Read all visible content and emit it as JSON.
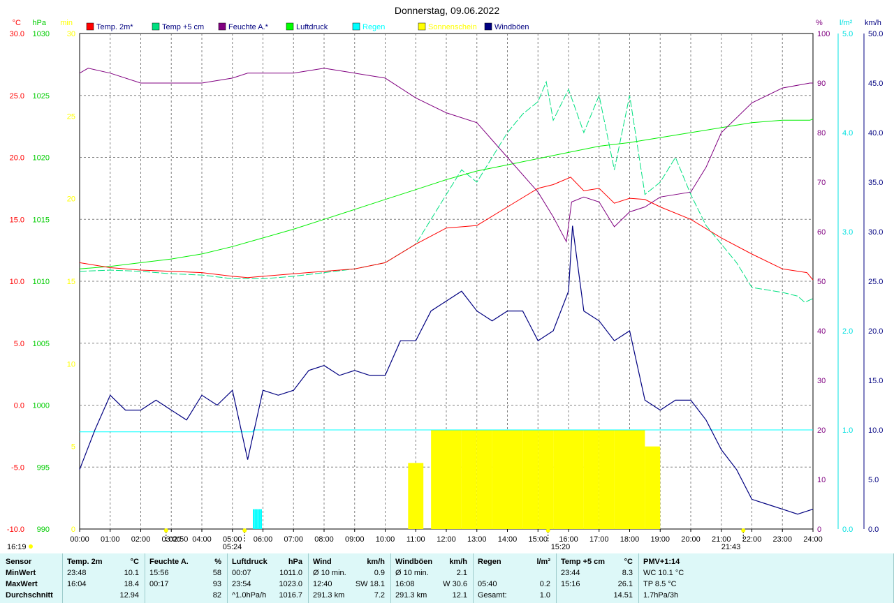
{
  "chart_data": {
    "type": "line",
    "title": "Donnerstag, 09.06.2022",
    "x_ticks": [
      "00:00",
      "01:00",
      "02:00",
      "03:00",
      "04:00",
      "05:00",
      "06:00",
      "07:00",
      "08:00",
      "09:00",
      "10:00",
      "11:00",
      "12:00",
      "13:00",
      "14:00",
      "15:00",
      "16:00",
      "17:00",
      "18:00",
      "19:00",
      "20:00",
      "21:00",
      "22:00",
      "23:00",
      "24:00"
    ],
    "grid": true,
    "legend_placement": "top",
    "axes": {
      "temp": {
        "unit": "°C",
        "color": "#ff0000",
        "ylim": [
          -10,
          30
        ],
        "ticks": [
          "30.0",
          "25.0",
          "20.0",
          "15.0",
          "10.0",
          "5.0",
          "0.0",
          "-5.0",
          "-10.0"
        ]
      },
      "pressure": {
        "unit": "hPa",
        "color": "#00cc00",
        "ylim": [
          990,
          1030
        ],
        "ticks": [
          "1030",
          "1025",
          "1020",
          "1015",
          "1010",
          "1005",
          "1000",
          "995",
          "990"
        ]
      },
      "sunshine": {
        "unit": "min",
        "color": "#ffff00",
        "ylim": [
          0,
          30
        ],
        "ticks": [
          "30",
          "25",
          "20",
          "15",
          "10",
          "5",
          "0"
        ]
      },
      "humidity": {
        "unit": "%",
        "color": "#800080",
        "ylim": [
          0,
          100
        ],
        "ticks": [
          "100",
          "90",
          "80",
          "70",
          "60",
          "50",
          "40",
          "30",
          "20",
          "10",
          "0"
        ]
      },
      "rain": {
        "unit": "l/m²",
        "color": "#00e0e0",
        "ylim": [
          0,
          5
        ],
        "ticks": [
          "5.0",
          "4.0",
          "3.0",
          "2.0",
          "1.0",
          "0.0"
        ]
      },
      "wind": {
        "unit": "km/h",
        "color": "#000080",
        "ylim": [
          0,
          50
        ],
        "ticks": [
          "50.0",
          "45.0",
          "40.0",
          "35.0",
          "30.0",
          "25.0",
          "20.0",
          "15.0",
          "10.0",
          "5.0",
          "0.0"
        ]
      }
    },
    "legend": [
      {
        "name": "Temp. 2m*",
        "color": "#ff0000"
      },
      {
        "name": "Temp +5 cm",
        "color": "#00e080"
      },
      {
        "name": "Feuchte A.*",
        "color": "#800080"
      },
      {
        "name": "Luftdruck",
        "color": "#00ff00"
      },
      {
        "name": "Regen",
        "color": "#00ffff"
      },
      {
        "name": "Sonnenschein",
        "color": "#ffff00"
      },
      {
        "name": "Windböen",
        "color": "#000080"
      }
    ],
    "series": [
      {
        "name": "Temp. 2m*",
        "axis": "temp",
        "x": [
          0,
          1,
          2,
          3,
          4,
          5,
          5.5,
          6,
          7,
          8,
          9,
          10,
          11,
          12,
          13,
          14,
          15,
          15.5,
          16.07,
          16.5,
          17,
          17.5,
          18,
          18.5,
          19,
          20,
          21,
          22,
          23,
          23.8,
          24
        ],
        "y": [
          11.5,
          11.1,
          10.9,
          10.8,
          10.7,
          10.4,
          10.3,
          10.4,
          10.6,
          10.8,
          11.0,
          11.5,
          13.0,
          14.3,
          14.5,
          16.0,
          17.5,
          17.8,
          18.4,
          17.3,
          17.5,
          16.3,
          16.7,
          16.6,
          16.0,
          15.0,
          13.5,
          12.2,
          11.0,
          10.7,
          10.1
        ]
      },
      {
        "name": "Temp +5 cm",
        "axis": "temp",
        "x": [
          0,
          1,
          2,
          3,
          4,
          5,
          6,
          7,
          8,
          9,
          10,
          11,
          11.5,
          12,
          12.5,
          13,
          13.5,
          14,
          14.5,
          15,
          15.27,
          15.5,
          16,
          16.5,
          17,
          17.5,
          18,
          18.5,
          19,
          19.5,
          20,
          20.5,
          21,
          21.5,
          22,
          22.5,
          23,
          23.5,
          23.73,
          24
        ],
        "y": [
          10.8,
          10.9,
          10.8,
          10.6,
          10.5,
          10.2,
          10.2,
          10.4,
          10.7,
          11.0,
          11.5,
          13.0,
          15.0,
          17.0,
          19.0,
          18.0,
          20.0,
          22.0,
          23.5,
          24.5,
          26.1,
          23.0,
          25.5,
          22.0,
          25.0,
          19.0,
          25.0,
          17.0,
          18.0,
          20.0,
          17.0,
          14.5,
          13.0,
          11.5,
          9.5,
          9.3,
          9.1,
          8.8,
          8.3,
          8.6
        ]
      },
      {
        "name": "Feuchte A.*",
        "axis": "humidity",
        "x": [
          0,
          0.28,
          1,
          2,
          3,
          4,
          5,
          5.5,
          6,
          7,
          8,
          9,
          10,
          11,
          12,
          13,
          14,
          15,
          15.5,
          15.93,
          16.1,
          16.5,
          17,
          17.5,
          18,
          18.5,
          19,
          20,
          20.5,
          21,
          22,
          23,
          23.9,
          24
        ],
        "y": [
          92,
          93,
          92,
          90,
          90,
          90,
          91,
          92,
          92,
          92,
          93,
          92,
          91,
          87,
          84,
          82,
          75,
          68,
          63,
          58,
          66,
          67,
          66,
          61,
          64,
          65,
          67,
          68,
          73,
          80,
          86,
          89,
          90,
          90
        ]
      },
      {
        "name": "Luftdruck",
        "axis": "pressure",
        "x": [
          0,
          1,
          2,
          3,
          4,
          5,
          6,
          7,
          8,
          9,
          10,
          11,
          12,
          13,
          14,
          15,
          16,
          17,
          18,
          19,
          20,
          21,
          22,
          23,
          23.9,
          24
        ],
        "y": [
          1011.0,
          1011.2,
          1011.5,
          1011.8,
          1012.2,
          1012.8,
          1013.5,
          1014.2,
          1015.0,
          1015.8,
          1016.6,
          1017.4,
          1018.2,
          1018.9,
          1019.4,
          1019.9,
          1020.4,
          1020.9,
          1021.2,
          1021.6,
          1022.0,
          1022.4,
          1022.8,
          1023.0,
          1023.0,
          1023.1
        ]
      },
      {
        "name": "Regen",
        "axis": "rain",
        "x": [
          0,
          5.67,
          5.68,
          5.99,
          6.0,
          24
        ],
        "y": [
          0.98,
          0.98,
          1.0,
          1.0,
          1.0,
          1.0
        ],
        "bars": {
          "x": [
            5.67,
            5.72,
            5.77,
            5.82,
            5.87,
            5.92
          ],
          "values": [
            0.2,
            0.2,
            0.2,
            0.2,
            0.2,
            0.2
          ]
        }
      },
      {
        "name": "Windböen",
        "axis": "wind",
        "x": [
          0,
          0.5,
          1,
          1.5,
          2,
          2.5,
          3,
          3.5,
          4,
          4.5,
          5,
          5.5,
          6,
          6.5,
          7,
          7.5,
          8,
          8.5,
          9,
          9.5,
          10,
          10.5,
          11,
          11.5,
          12,
          12.5,
          13,
          13.5,
          14,
          14.5,
          15,
          15.5,
          16,
          16.13,
          16.5,
          17,
          17.5,
          18,
          18.5,
          19,
          19.5,
          20,
          20.5,
          21,
          21.5,
          22,
          22.5,
          23,
          23.5,
          24
        ],
        "y": [
          6.0,
          10.0,
          13.5,
          12.0,
          12.0,
          13.0,
          12.0,
          11.0,
          13.5,
          12.5,
          14.0,
          7.0,
          14.0,
          13.5,
          14.0,
          16.0,
          16.5,
          15.5,
          16.0,
          15.5,
          15.5,
          19.0,
          19.0,
          22.0,
          23.0,
          24.0,
          22.0,
          21.0,
          22.0,
          22.0,
          19.0,
          20.0,
          24.0,
          30.6,
          22.0,
          21.0,
          19.0,
          20.0,
          13.0,
          12.0,
          13.0,
          13.0,
          11.0,
          8.0,
          6.0,
          3.0,
          2.5,
          2.0,
          1.5,
          2.0
        ]
      },
      {
        "name": "Sonnenschein",
        "axis": "sunshine",
        "x": [
          10.75,
          11.5,
          12.0,
          12.5,
          13.0,
          13.5,
          14.0,
          14.5,
          15.0,
          15.5,
          16.0,
          16.5,
          17.0,
          17.5,
          18.0,
          18.5
        ],
        "y": [
          4,
          6,
          6,
          6,
          6,
          6,
          6,
          6,
          6,
          6,
          6,
          6,
          6,
          6,
          6,
          5
        ]
      }
    ],
    "annotations": [
      "16:19",
      "02:50",
      "05:24",
      "15:20",
      "21:43"
    ]
  },
  "stats": {
    "row_labels": [
      "Sensor",
      "MinWert",
      "MaxWert",
      "Durchschnitt"
    ],
    "columns": [
      {
        "title": "Temp. 2m",
        "unit": "°C",
        "rows": [
          [
            "23:48",
            "10.1"
          ],
          [
            "16:04",
            "18.4"
          ],
          [
            "",
            "12.94"
          ]
        ]
      },
      {
        "title": "Feuchte A.",
        "unit": "%",
        "rows": [
          [
            "15:56",
            "58"
          ],
          [
            "00:17",
            "93"
          ],
          [
            "",
            "82"
          ]
        ]
      },
      {
        "title": "Luftdruck",
        "unit": "hPa",
        "rows": [
          [
            "00:07",
            "1011.0"
          ],
          [
            "23:54",
            "1023.0"
          ],
          [
            "^1.0hPa/h",
            "1016.7"
          ]
        ]
      },
      {
        "title": "Wind",
        "unit": "km/h",
        "rows": [
          [
            "Ø 10 min.",
            "0.9"
          ],
          [
            "12:40",
            "SW 18.1"
          ],
          [
            "291.3 km",
            "7.2"
          ]
        ]
      },
      {
        "title": "Windböen",
        "unit": "km/h",
        "rows": [
          [
            "Ø 10 min.",
            "2.1"
          ],
          [
            "16:08",
            "W 30.6"
          ],
          [
            "291.3 km",
            "12.1"
          ]
        ]
      },
      {
        "title": "Regen",
        "unit": "l/m²",
        "rows": [
          [
            "",
            ""
          ],
          [
            "05:40",
            "0.2"
          ],
          [
            "Gesamt:",
            "1.0"
          ]
        ]
      },
      {
        "title": "Temp +5 cm",
        "unit": "°C",
        "rows": [
          [
            "23:44",
            "8.3"
          ],
          [
            "15:16",
            "26.1"
          ],
          [
            "",
            "14.51"
          ]
        ]
      },
      {
        "title": "PMV+1:14",
        "unit": "",
        "rows": [
          [
            "WC 10.1 °C",
            ""
          ],
          [
            "TP 8.5 °C",
            ""
          ],
          [
            "1.7hPa/3h",
            ""
          ]
        ]
      }
    ]
  }
}
